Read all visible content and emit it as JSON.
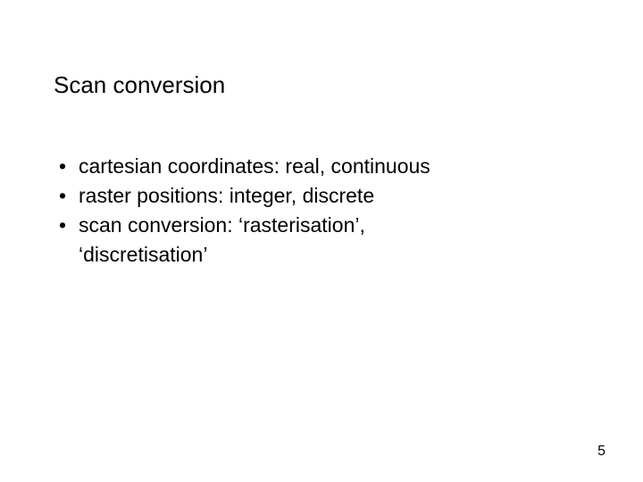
{
  "slide": {
    "title": "Scan conversion",
    "bullets": [
      "cartesian coordinates:  real, continuous",
      "raster positions: integer, discrete",
      "scan conversion: ‘rasterisation’,"
    ],
    "continuation": "‘discretisation’",
    "page_number": "5",
    "background_color": "#ffffff",
    "text_color": "#000000",
    "title_fontsize": 26,
    "body_fontsize": 23
  }
}
